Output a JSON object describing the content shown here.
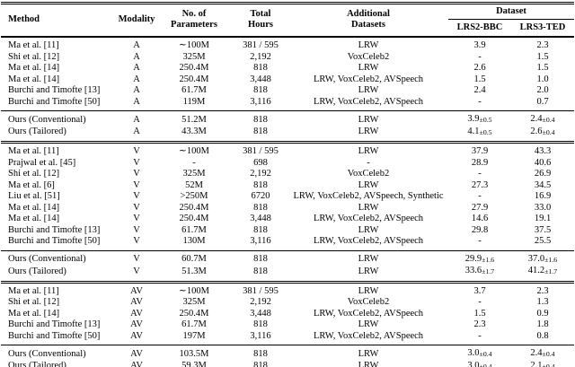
{
  "page": {
    "background_color": "#ffffff",
    "text_color": "#000000"
  },
  "table": {
    "columns": [
      {
        "key": "method",
        "label": "Method"
      },
      {
        "key": "modality",
        "label": "Modality"
      },
      {
        "key": "params",
        "label": "No. of\nParameters"
      },
      {
        "key": "hours",
        "label": "Total\nHours"
      },
      {
        "key": "datasets",
        "label": "Additional\nDatasets"
      },
      {
        "key": "lrs2",
        "label": "LRS2-BBC"
      },
      {
        "key": "lrs3",
        "label": "LRS3-TED"
      }
    ],
    "dataset_group_label": "Dataset",
    "sections": [
      {
        "group": "A",
        "kind": "prior",
        "divider_above": "none",
        "rows": [
          [
            "Ma et al. [11]",
            "A",
            "∼100M",
            "381 / 595",
            "LRW",
            "3.9",
            "2.3"
          ],
          [
            "Shi et al. [12]",
            "A",
            "325M",
            "2,192",
            "VoxCeleb2",
            "-",
            "1.5"
          ],
          [
            "Ma et al. [14]",
            "A",
            "250.4M",
            "818",
            "LRW",
            "2.6",
            "1.5"
          ],
          [
            "Ma et al. [14]",
            "A",
            "250.4M",
            "3,448",
            "LRW, VoxCeleb2, AVSpeech",
            "1.5",
            "1.0"
          ],
          [
            "Burchi and Timofte [13]",
            "A",
            "61.7M",
            "818",
            "LRW",
            "2.4",
            "2.0"
          ],
          [
            "Burchi and Timofte [50]",
            "A",
            "119M",
            "3,116",
            "LRW, VoxCeleb2, AVSpeech",
            "-",
            "0.7"
          ]
        ]
      },
      {
        "group": "A",
        "kind": "ours",
        "divider_above": "single",
        "rows": [
          [
            "Ours (Conventional)",
            "A",
            "51.2M",
            "818",
            "LRW",
            "3.9±0.5",
            "2.4±0.4"
          ],
          [
            "Ours (Tailored)",
            "A",
            "43.3M",
            "818",
            "LRW",
            "4.1±0.5",
            "2.6±0.4"
          ]
        ]
      },
      {
        "group": "V",
        "kind": "prior",
        "divider_above": "double",
        "rows": [
          [
            "Ma et al. [11]",
            "V",
            "∼100M",
            "381 / 595",
            "LRW",
            "37.9",
            "43.3"
          ],
          [
            "Prajwal et al. [45]",
            "V",
            "-",
            "698",
            "-",
            "28.9",
            "40.6"
          ],
          [
            "Shi et al. [12]",
            "V",
            "325M",
            "2,192",
            "VoxCeleb2",
            "-",
            "26.9"
          ],
          [
            "Ma et al. [6]",
            "V",
            "52M",
            "818",
            "LRW",
            "27.3",
            "34.5"
          ],
          [
            "Liu et al. [51]",
            "V",
            ">250M",
            "6720",
            "LRW, VoxCeleb2, AVSpeech, Synthetic",
            "-",
            "16.9"
          ],
          [
            "Ma et al. [14]",
            "V",
            "250.4M",
            "818",
            "LRW",
            "27.9",
            "33.0"
          ],
          [
            "Ma et al. [14]",
            "V",
            "250.4M",
            "3,448",
            "LRW, VoxCeleb2, AVSpeech",
            "14.6",
            "19.1"
          ],
          [
            "Burchi and Timofte [13]",
            "V",
            "61.7M",
            "818",
            "LRW",
            "29.8",
            "37.5"
          ],
          [
            "Burchi and Timofte [50]",
            "V",
            "130M",
            "3,116",
            "LRW, VoxCeleb2, AVSpeech",
            "-",
            "25.5"
          ]
        ]
      },
      {
        "group": "V",
        "kind": "ours",
        "divider_above": "single",
        "rows": [
          [
            "Ours (Conventional)",
            "V",
            "60.7M",
            "818",
            "LRW",
            "29.9±1.6",
            "37.0±1.6"
          ],
          [
            "Ours (Tailored)",
            "V",
            "51.3M",
            "818",
            "LRW",
            "33.6±1.7",
            "41.2±1.7"
          ]
        ]
      },
      {
        "group": "AV",
        "kind": "prior",
        "divider_above": "double",
        "rows": [
          [
            "Ma et al. [11]",
            "AV",
            "∼100M",
            "381 / 595",
            "LRW",
            "3.7",
            "2.3"
          ],
          [
            "Shi et al. [12]",
            "AV",
            "325M",
            "2,192",
            "VoxCeleb2",
            "-",
            "1.3"
          ],
          [
            "Ma et al. [14]",
            "AV",
            "250.4M",
            "3,448",
            "LRW, VoxCeleb2, AVSpeech",
            "1.5",
            "0.9"
          ],
          [
            "Burchi and Timofte [13]",
            "AV",
            "61.7M",
            "818",
            "LRW",
            "2.3",
            "1.8"
          ],
          [
            "Burchi and Timofte [50]",
            "AV",
            "197M",
            "3,116",
            "LRW, VoxCeleb2, AVSpeech",
            "-",
            "0.8"
          ]
        ]
      },
      {
        "group": "AV",
        "kind": "ours",
        "divider_above": "single",
        "rows": [
          [
            "Ours (Conventional)",
            "AV",
            "103.5M",
            "818",
            "LRW",
            "3.0±0.4",
            "2.4±0.4"
          ],
          [
            "Ours (Tailored)",
            "AV",
            "59.3M",
            "818",
            "LRW",
            "3.0±0.4",
            "2.1±0.4"
          ]
        ]
      }
    ]
  }
}
